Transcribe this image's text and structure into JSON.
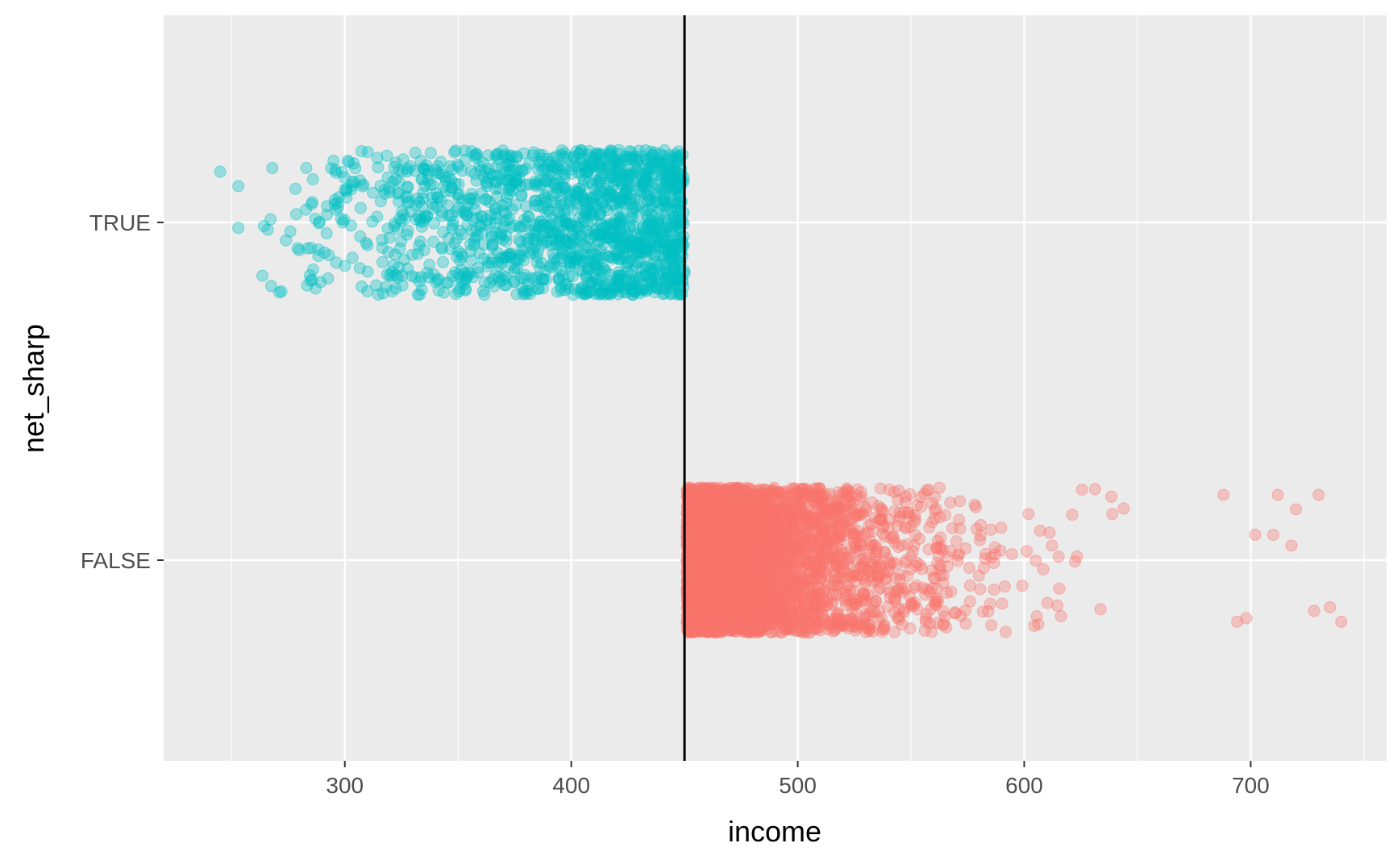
{
  "chart_data": {
    "type": "scatter",
    "subtype": "jitter strip plot",
    "title": "",
    "xlabel": "income",
    "ylabel": "net_sharp",
    "xlim": [
      220,
      760
    ],
    "x_ticks": [
      300,
      400,
      500,
      600,
      700
    ],
    "x_tick_labels": [
      "300",
      "400",
      "500",
      "600",
      "700"
    ],
    "categories": [
      "FALSE",
      "TRUE"
    ],
    "grid": true,
    "legend": "none",
    "panel_background": "#ebebeb",
    "gridline_color": "#ffffff",
    "reference_line": {
      "orientation": "vertical",
      "x": 450,
      "color": "#000000"
    },
    "series": [
      {
        "category": "TRUE",
        "color": "#00bfc4",
        "opacity": 0.35,
        "x_range": [
          245,
          452
        ],
        "n_points": 1500,
        "density": "increasing toward 450",
        "sample_points": [
          {
            "x": 245,
            "y_offset": 0.14
          },
          {
            "x": 253,
            "y_offset": 0.1
          },
          {
            "x": 266,
            "y_offset": -0.02
          },
          {
            "x": 268,
            "y_offset": 0.15
          },
          {
            "x": 272,
            "y_offset": -0.19
          },
          {
            "x": 283,
            "y_offset": 0.15
          },
          {
            "x": 285,
            "y_offset": -0.07
          },
          {
            "x": 287,
            "y_offset": 0.01
          },
          {
            "x": 295,
            "y_offset": 0.17
          },
          {
            "x": 300,
            "y_offset": 0.09
          },
          {
            "x": 300,
            "y_offset": -0.12
          },
          {
            "x": 307,
            "y_offset": 0.04
          },
          {
            "x": 310,
            "y_offset": -0.19
          }
        ]
      },
      {
        "category": "FALSE",
        "color": "#f8766d",
        "opacity": 0.35,
        "x_range": [
          450,
          740
        ],
        "n_points": 4500,
        "density": "decreasing from 450",
        "sample_points": [
          {
            "x": 740,
            "y_offset": -0.17
          },
          {
            "x": 735,
            "y_offset": -0.13
          },
          {
            "x": 730,
            "y_offset": 0.18
          },
          {
            "x": 728,
            "y_offset": -0.14
          },
          {
            "x": 720,
            "y_offset": 0.14
          },
          {
            "x": 718,
            "y_offset": 0.04
          },
          {
            "x": 712,
            "y_offset": 0.18
          },
          {
            "x": 710,
            "y_offset": 0.07
          },
          {
            "x": 702,
            "y_offset": 0.07
          },
          {
            "x": 698,
            "y_offset": -0.16
          },
          {
            "x": 694,
            "y_offset": -0.17
          },
          {
            "x": 688,
            "y_offset": 0.18
          }
        ]
      }
    ]
  }
}
